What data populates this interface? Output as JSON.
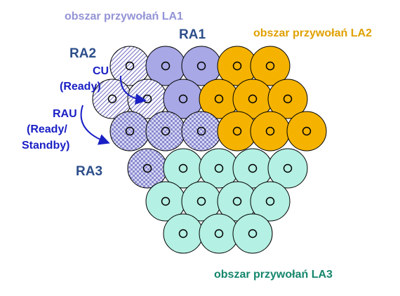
{
  "labels": {
    "la1": "obszar przywołań LA1",
    "la2": "obszar przywołań LA2",
    "la3": "obszar przywołań LA3",
    "ra1": "RA1",
    "ra2": "RA2",
    "ra3": "RA3",
    "cu": "CU",
    "cu_ready": "(Ready)",
    "rau": "RAU",
    "rau_ready": "(Ready/",
    "rau_standby": "Standby)"
  },
  "cells": [
    {
      "area": "RA2"
    },
    {
      "area": "RA1"
    },
    {
      "area": "RA1"
    },
    {
      "area": "LA2"
    },
    {
      "area": "LA2"
    },
    {
      "area": "RA2"
    },
    {
      "area": "RA2"
    },
    {
      "area": "RA1"
    },
    {
      "area": "LA2"
    },
    {
      "area": "LA2"
    },
    {
      "area": "LA2"
    },
    {
      "area": "RA3"
    },
    {
      "area": "RA3"
    },
    {
      "area": "RA3"
    },
    {
      "area": "LA2"
    },
    {
      "area": "LA2"
    },
    {
      "area": "LA2"
    },
    {
      "area": "RA3"
    },
    {
      "area": "LA3"
    },
    {
      "area": "LA3"
    },
    {
      "area": "LA3"
    },
    {
      "area": "LA3"
    },
    {
      "area": "LA3"
    },
    {
      "area": "LA3"
    },
    {
      "area": "LA3"
    },
    {
      "area": "LA3"
    },
    {
      "area": "LA3"
    },
    {
      "area": "LA3"
    },
    {
      "area": "LA3"
    }
  ],
  "colors": {
    "RA1": "#a8a8e6",
    "RA2": "#c8c8e8",
    "RA3": "#b4b4e2",
    "LA2": "#f5b300",
    "LA3": "#b4f0e3",
    "outline": "#000000",
    "arrow": "#1a20c4"
  }
}
